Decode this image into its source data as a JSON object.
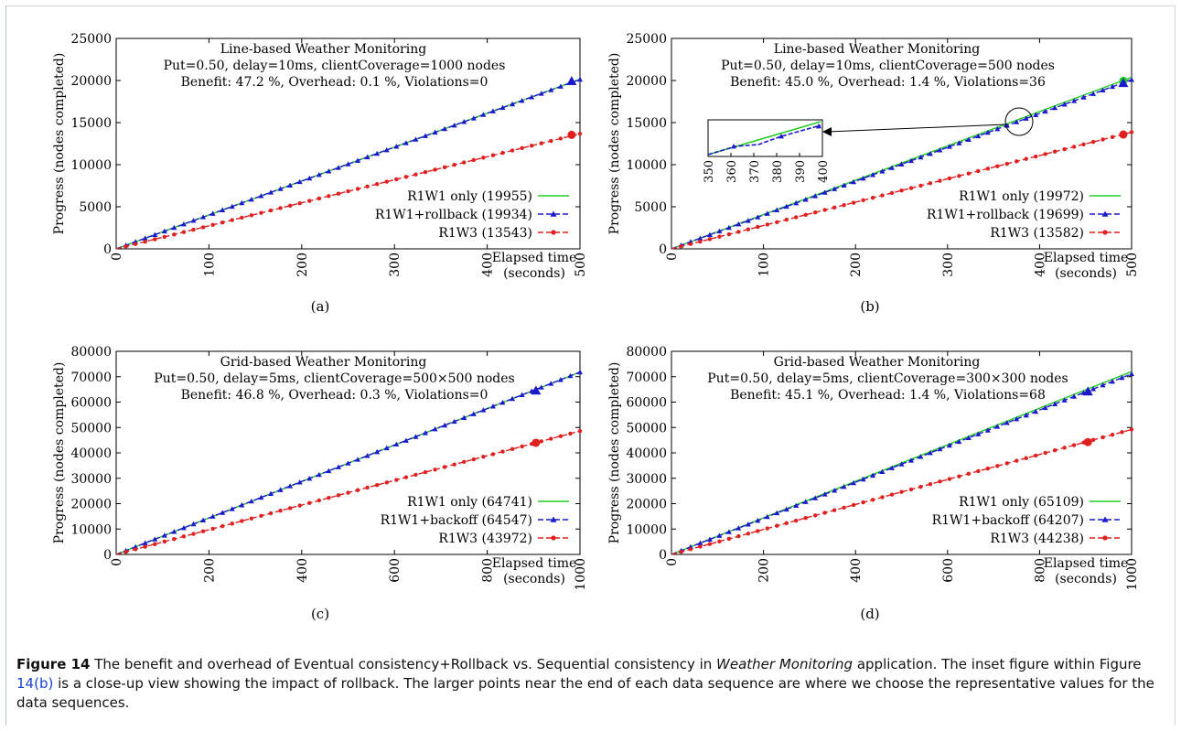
{
  "colors": {
    "green": "#22cc22",
    "blue": "#1a1acc",
    "red": "#e01f1f",
    "axis": "#000000"
  },
  "chart_data": [
    {
      "type": "line",
      "sublabel": "(a)",
      "title_lines": [
        "Line-based Weather Monitoring",
        "Put=0.50, delay=10ms, clientCoverage=1000 nodes",
        "Benefit: 47.2 %, Overhead: 0.1 %, Violations=0"
      ],
      "ylabel": "Progress (nodes completed)",
      "xlabel_lines": [
        "Elapsed time",
        "(seconds)"
      ],
      "xlim": [
        0,
        500
      ],
      "ylim": [
        0,
        25000
      ],
      "xticks": [
        0,
        100,
        200,
        300,
        400,
        500
      ],
      "yticks": [
        0,
        5000,
        10000,
        15000,
        20000,
        25000
      ],
      "series": [
        {
          "name": "R1W1 only (19955)",
          "color": "green",
          "marker": "none",
          "x": [
            0,
            500
          ],
          "y": [
            0,
            20150
          ]
        },
        {
          "name": "R1W1+rollback (19934)",
          "color": "blue",
          "marker": "triangle",
          "x": [
            0,
            500
          ],
          "y": [
            0,
            20130
          ],
          "highlight": {
            "x": 491,
            "y": 19934
          }
        },
        {
          "name": "R1W3 (13543)",
          "color": "red",
          "marker": "circle",
          "x": [
            0,
            500
          ],
          "y": [
            0,
            13680
          ],
          "highlight": {
            "x": 491,
            "y": 13543
          }
        }
      ]
    },
    {
      "type": "line",
      "sublabel": "(b)",
      "title_lines": [
        "Line-based Weather Monitoring",
        "Put=0.50, delay=10ms, clientCoverage=500 nodes",
        "Benefit: 45.0 %, Overhead: 1.4 %, Violations=36"
      ],
      "ylabel": "Progress (nodes completed)",
      "xlabel_lines": [
        "Elapsed time",
        "(seconds)"
      ],
      "xlim": [
        0,
        500
      ],
      "ylim": [
        0,
        25000
      ],
      "xticks": [
        0,
        100,
        200,
        300,
        400,
        500
      ],
      "yticks": [
        0,
        5000,
        10000,
        15000,
        20000,
        25000
      ],
      "series": [
        {
          "name": "R1W1 only (19972)",
          "color": "green",
          "marker": "none",
          "x": [
            0,
            500
          ],
          "y": [
            0,
            20380
          ],
          "highlight": {
            "x": 491,
            "y": 19972
          }
        },
        {
          "name": "R1W1+rollback (19699)",
          "color": "blue",
          "marker": "triangle",
          "x": [
            0,
            500
          ],
          "y": [
            0,
            20100
          ],
          "highlight": {
            "x": 491,
            "y": 19699
          }
        },
        {
          "name": "R1W3 (13582)",
          "color": "red",
          "marker": "circle",
          "x": [
            0,
            500
          ],
          "y": [
            0,
            13860
          ],
          "highlight": {
            "x": 491,
            "y": 13582
          }
        }
      ],
      "inset": {
        "xticks": [
          350,
          360,
          370,
          380,
          390,
          400
        ],
        "xlim": [
          350,
          400
        ]
      }
    },
    {
      "type": "line",
      "sublabel": "(c)",
      "title_lines": [
        "Grid-based Weather Monitoring",
        "Put=0.50, delay=5ms, clientCoverage=500×500 nodes",
        "Benefit: 46.8 %, Overhead: 0.3 %, Violations=0"
      ],
      "ylabel": "Progress (nodes completed)",
      "xlabel_lines": [
        "Elapsed time",
        "(seconds)"
      ],
      "xlim": [
        0,
        1000
      ],
      "ylim": [
        0,
        80000
      ],
      "xticks": [
        0,
        200,
        400,
        600,
        800,
        1000
      ],
      "yticks": [
        0,
        10000,
        20000,
        30000,
        40000,
        50000,
        60000,
        70000,
        80000
      ],
      "series": [
        {
          "name": "R1W1 only (64741)",
          "color": "green",
          "marker": "none",
          "x": [
            0,
            1000
          ],
          "y": [
            0,
            71800
          ]
        },
        {
          "name": "R1W1+backoff (64547)",
          "color": "blue",
          "marker": "triangle",
          "x": [
            0,
            1000
          ],
          "y": [
            0,
            71800
          ],
          "highlight": {
            "x": 905,
            "y": 64547
          }
        },
        {
          "name": "R1W3 (43972)",
          "color": "red",
          "marker": "circle",
          "x": [
            0,
            1000
          ],
          "y": [
            0,
            48600
          ],
          "highlight": {
            "x": 905,
            "y": 43972
          }
        }
      ]
    },
    {
      "type": "line",
      "sublabel": "(d)",
      "title_lines": [
        "Grid-based Weather Monitoring",
        "Put=0.50, delay=5ms, clientCoverage=300×300 nodes",
        "Benefit: 45.1 %, Overhead: 1.4 %, Violations=68"
      ],
      "ylabel": "Progress (nodes completed)",
      "xlabel_lines": [
        "Elapsed time",
        "(seconds)"
      ],
      "xlim": [
        0,
        1000
      ],
      "ylim": [
        0,
        80000
      ],
      "xticks": [
        0,
        200,
        400,
        600,
        800,
        1000
      ],
      "yticks": [
        0,
        10000,
        20000,
        30000,
        40000,
        50000,
        60000,
        70000,
        80000
      ],
      "series": [
        {
          "name": "R1W1 only (65109)",
          "color": "green",
          "marker": "none",
          "x": [
            0,
            1000
          ],
          "y": [
            0,
            72000
          ]
        },
        {
          "name": "R1W1+backoff (64207)",
          "color": "blue",
          "marker": "triangle",
          "x": [
            0,
            1000
          ],
          "y": [
            0,
            71100
          ],
          "highlight": {
            "x": 905,
            "y": 64207
          }
        },
        {
          "name": "R1W3 (44238)",
          "color": "red",
          "marker": "circle",
          "x": [
            0,
            1000
          ],
          "y": [
            0,
            49200
          ],
          "highlight": {
            "x": 905,
            "y": 44238
          }
        }
      ]
    }
  ],
  "caption": {
    "figure_label": "Figure 14",
    "part1": " The benefit and overhead of Eventual consistency+Rollback vs. Sequential consistency in ",
    "italic": "Weather Monitoring",
    "part2": " application. The inset figure within Figure ",
    "ref": "14(b)",
    "part3": " is a close-up view showing the impact of rollback. The larger points near the end of each data sequence are where we choose the representative values for the data sequences."
  }
}
